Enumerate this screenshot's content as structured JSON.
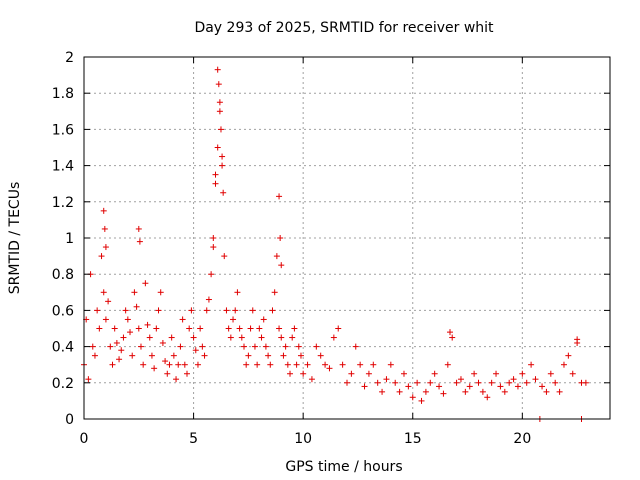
{
  "chart_data": {
    "type": "scatter",
    "title": "Day 293 of 2025, SRMTID for receiver whit",
    "xlabel": "GPS time / hours",
    "ylabel": "SRMTID / TECUs",
    "xlim": [
      0,
      24
    ],
    "ylim": [
      0,
      2
    ],
    "xticks": [
      0,
      5,
      10,
      15,
      20
    ],
    "xtick_labels": [
      "0",
      "5",
      "10",
      "15",
      "20"
    ],
    "yticks": [
      0,
      0.2,
      0.4,
      0.6,
      0.8,
      1.0,
      1.2,
      1.4,
      1.6,
      1.8,
      2.0
    ],
    "ytick_labels": [
      "0",
      "0.2",
      "0.4",
      "0.6",
      "0.8",
      "1",
      "1.2",
      "1.4",
      "1.6",
      "1.8",
      "2"
    ],
    "grid": true,
    "marker": "+",
    "color": "#e00000",
    "series": [
      {
        "name": "SRMTID",
        "x": [
          0.0,
          0.1,
          0.2,
          0.3,
          0.4,
          0.5,
          0.6,
          0.7,
          0.8,
          0.9,
          1.0,
          1.1,
          1.2,
          1.3,
          1.4,
          1.5,
          1.6,
          1.7,
          1.8,
          1.9,
          2.0,
          2.1,
          2.2,
          2.3,
          2.4,
          2.5,
          2.6,
          2.7,
          2.8,
          2.9,
          3.0,
          3.1,
          3.2,
          3.3,
          3.4,
          3.5,
          3.6,
          3.7,
          3.8,
          3.9,
          4.0,
          4.1,
          4.2,
          4.3,
          4.4,
          4.5,
          4.6,
          4.7,
          4.8,
          4.9,
          5.0,
          5.1,
          5.2,
          5.3,
          5.4,
          5.5,
          5.6,
          5.7,
          5.8,
          5.9,
          6.0,
          6.1,
          6.2,
          6.3,
          6.4,
          6.5,
          6.6,
          6.7,
          6.8,
          6.9,
          7.0,
          7.1,
          7.2,
          7.3,
          7.4,
          7.5,
          7.6,
          7.7,
          7.8,
          7.9,
          8.0,
          8.1,
          8.2,
          8.3,
          8.4,
          8.5,
          8.6,
          8.7,
          8.8,
          8.9,
          9.0,
          9.1,
          9.2,
          9.3,
          9.4,
          9.5,
          9.6,
          9.7,
          9.8,
          9.9,
          10.0,
          10.2,
          10.4,
          10.6,
          10.8,
          11.0,
          11.2,
          11.4,
          11.6,
          11.8,
          12.0,
          12.2,
          12.4,
          12.6,
          12.8,
          13.0,
          13.2,
          13.4,
          13.6,
          13.8,
          14.0,
          14.2,
          14.4,
          14.6,
          14.8,
          15.0,
          15.2,
          15.4,
          15.6,
          15.8,
          16.0,
          16.2,
          16.4,
          16.6,
          16.8,
          17.0,
          17.2,
          17.4,
          17.6,
          17.8,
          18.0,
          18.2,
          18.4,
          18.6,
          18.8,
          19.0,
          19.2,
          19.4,
          19.6,
          19.8,
          20.0,
          20.2,
          20.4,
          20.6,
          20.9,
          21.1,
          21.3,
          21.5,
          21.7,
          21.9,
          22.1,
          22.3,
          22.5,
          22.7,
          22.9,
          0.9,
          0.95,
          1.0,
          2.5,
          2.55,
          6.1,
          6.15,
          6.2,
          6.25,
          6.3,
          6.35,
          5.9,
          6.0,
          8.9,
          8.95,
          9.0,
          16.7,
          22.5,
          20.8,
          22.7
        ],
        "y": [
          0.3,
          0.55,
          0.22,
          0.8,
          0.4,
          0.35,
          0.6,
          0.5,
          0.9,
          0.7,
          0.55,
          0.65,
          0.4,
          0.3,
          0.5,
          0.42,
          0.33,
          0.38,
          0.45,
          0.6,
          0.55,
          0.48,
          0.35,
          0.7,
          0.62,
          0.5,
          0.4,
          0.3,
          0.75,
          0.52,
          0.45,
          0.35,
          0.28,
          0.5,
          0.6,
          0.7,
          0.42,
          0.32,
          0.25,
          0.3,
          0.45,
          0.35,
          0.22,
          0.3,
          0.4,
          0.55,
          0.3,
          0.25,
          0.5,
          0.6,
          0.45,
          0.38,
          0.3,
          0.5,
          0.4,
          0.35,
          0.6,
          0.66,
          0.8,
          1.0,
          1.3,
          1.5,
          1.7,
          1.4,
          0.9,
          0.6,
          0.5,
          0.45,
          0.55,
          0.6,
          0.7,
          0.5,
          0.45,
          0.4,
          0.3,
          0.35,
          0.5,
          0.6,
          0.4,
          0.3,
          0.5,
          0.45,
          0.55,
          0.4,
          0.35,
          0.3,
          0.6,
          0.7,
          0.9,
          0.5,
          0.45,
          0.35,
          0.4,
          0.3,
          0.25,
          0.45,
          0.5,
          0.3,
          0.4,
          0.35,
          0.25,
          0.3,
          0.22,
          0.4,
          0.35,
          0.3,
          0.28,
          0.45,
          0.5,
          0.3,
          0.2,
          0.25,
          0.4,
          0.3,
          0.18,
          0.25,
          0.3,
          0.2,
          0.15,
          0.22,
          0.3,
          0.2,
          0.15,
          0.25,
          0.18,
          0.12,
          0.2,
          0.1,
          0.15,
          0.2,
          0.25,
          0.18,
          0.14,
          0.3,
          0.45,
          0.2,
          0.22,
          0.15,
          0.18,
          0.25,
          0.2,
          0.15,
          0.12,
          0.2,
          0.25,
          0.18,
          0.15,
          0.2,
          0.22,
          0.18,
          0.25,
          0.2,
          0.3,
          0.22,
          0.18,
          0.15,
          0.25,
          0.2,
          0.15,
          0.3,
          0.35,
          0.25,
          0.42,
          0.2,
          0.2,
          1.15,
          1.05,
          0.95,
          1.05,
          0.98,
          1.93,
          1.85,
          1.75,
          1.6,
          1.45,
          1.25,
          0.95,
          1.35,
          1.23,
          1.0,
          0.85,
          0.48,
          0.44,
          0.0,
          0.0
        ]
      }
    ]
  }
}
